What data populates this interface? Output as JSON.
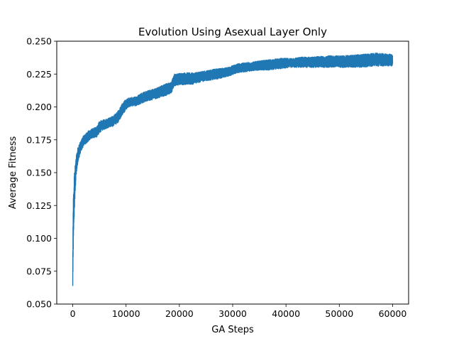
{
  "chart_data": {
    "type": "line",
    "title": "Evolution Using Asexual Layer Only",
    "xlabel": "GA Steps",
    "ylabel": "Average Fitness",
    "xlim": [
      -3000,
      63000
    ],
    "ylim": [
      0.05,
      0.25
    ],
    "x_ticks": [
      0,
      10000,
      20000,
      30000,
      40000,
      50000,
      60000
    ],
    "x_tick_labels": [
      "0",
      "10000",
      "20000",
      "30000",
      "40000",
      "50000",
      "60000"
    ],
    "y_ticks": [
      0.05,
      0.075,
      0.1,
      0.125,
      0.15,
      0.175,
      0.2,
      0.225,
      0.25
    ],
    "y_tick_labels": [
      "0.050",
      "0.075",
      "0.100",
      "0.125",
      "0.150",
      "0.175",
      "0.200",
      "0.225",
      "0.250"
    ],
    "grid": false,
    "series": [
      {
        "color": "#1f77b4",
        "band_note": "noisy signal; values give lower and upper envelope",
        "x": [
          0,
          100,
          300,
          600,
          1000,
          1500,
          2000,
          2500,
          3000,
          3500,
          4500,
          5000,
          5500,
          6500,
          7500,
          8500,
          9500,
          10500,
          12000,
          13000,
          14500,
          15500,
          17000,
          18500,
          19000,
          21000,
          22500,
          24000,
          25500,
          27000,
          29000,
          31000,
          33000,
          35000,
          37000,
          39000,
          41000,
          43000,
          45000,
          48000,
          51000,
          54000,
          57000,
          60000
        ],
        "lower": [
          0.059,
          0.09,
          0.12,
          0.145,
          0.158,
          0.166,
          0.17,
          0.172,
          0.174,
          0.176,
          0.177,
          0.18,
          0.182,
          0.184,
          0.185,
          0.188,
          0.195,
          0.2,
          0.201,
          0.203,
          0.205,
          0.206,
          0.208,
          0.21,
          0.216,
          0.217,
          0.217,
          0.219,
          0.22,
          0.221,
          0.223,
          0.226,
          0.227,
          0.228,
          0.228,
          0.229,
          0.23,
          0.23,
          0.23,
          0.23,
          0.23,
          0.23,
          0.231,
          0.231
        ],
        "upper": [
          0.088,
          0.13,
          0.15,
          0.162,
          0.17,
          0.174,
          0.178,
          0.18,
          0.182,
          0.183,
          0.185,
          0.189,
          0.19,
          0.191,
          0.193,
          0.197,
          0.204,
          0.207,
          0.208,
          0.211,
          0.213,
          0.214,
          0.217,
          0.219,
          0.225,
          0.226,
          0.226,
          0.227,
          0.228,
          0.229,
          0.23,
          0.233,
          0.234,
          0.235,
          0.236,
          0.237,
          0.237,
          0.238,
          0.238,
          0.239,
          0.239,
          0.24,
          0.241,
          0.24
        ]
      }
    ]
  }
}
